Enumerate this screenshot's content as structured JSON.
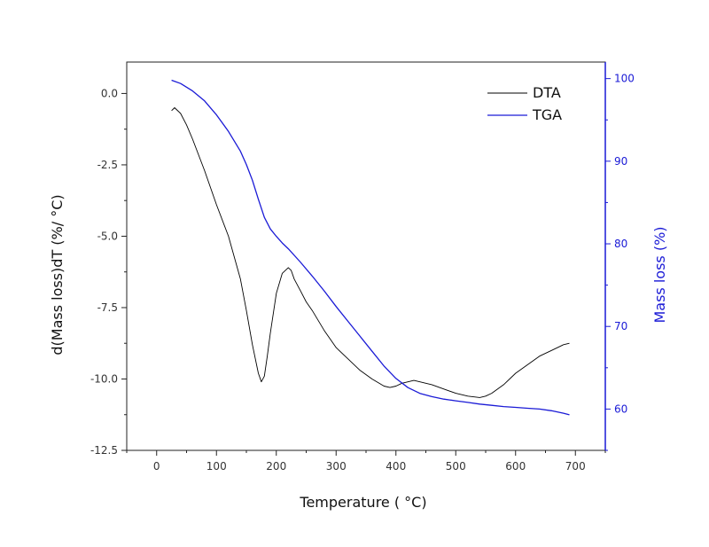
{
  "chart_data": {
    "type": "line",
    "xlabel": "Temperature (  °C)",
    "ylabel": "d(Mass loss)dT  (%/ °C)",
    "y2label": "Mass loss (%)",
    "xlim": [
      -50,
      750
    ],
    "ylim": [
      -12.5,
      1.1
    ],
    "y2lim": [
      55,
      102
    ],
    "xticks": [
      0,
      100,
      200,
      300,
      400,
      500,
      600,
      700
    ],
    "xtick_labels": [
      "0",
      "100",
      "200",
      "300",
      "400",
      "500",
      "600",
      "700"
    ],
    "yticks": [
      0.0,
      -2.5,
      -5.0,
      -7.5,
      -10.0,
      -12.5
    ],
    "ytick_labels": [
      "0.0",
      "-2.5",
      "-5.0",
      "-7.5",
      "-10.0",
      "-12.5"
    ],
    "y2ticks": [
      60,
      70,
      80,
      90,
      100
    ],
    "y2tick_labels": [
      "60",
      "70",
      "80",
      "90",
      "100"
    ],
    "legend_position": "top-right",
    "grid": false,
    "series": [
      {
        "name": "DTA",
        "axis": "left",
        "color": "#000000",
        "x": [
          25,
          30,
          40,
          50,
          60,
          80,
          100,
          120,
          140,
          150,
          160,
          170,
          175,
          180,
          185,
          190,
          200,
          210,
          220,
          225,
          230,
          240,
          250,
          260,
          280,
          300,
          320,
          340,
          360,
          380,
          390,
          400,
          410,
          420,
          430,
          440,
          450,
          460,
          480,
          500,
          520,
          540,
          550,
          560,
          580,
          600,
          620,
          640,
          660,
          680,
          690
        ],
        "y": [
          -0.6,
          -0.5,
          -0.7,
          -1.1,
          -1.6,
          -2.7,
          -3.9,
          -5.0,
          -6.5,
          -7.6,
          -8.8,
          -9.8,
          -10.1,
          -9.9,
          -9.2,
          -8.4,
          -7.0,
          -6.3,
          -6.1,
          -6.2,
          -6.5,
          -6.9,
          -7.3,
          -7.6,
          -8.3,
          -8.9,
          -9.3,
          -9.7,
          -10.0,
          -10.25,
          -10.3,
          -10.25,
          -10.15,
          -10.1,
          -10.05,
          -10.1,
          -10.15,
          -10.2,
          -10.35,
          -10.5,
          -10.6,
          -10.65,
          -10.6,
          -10.5,
          -10.2,
          -9.8,
          -9.5,
          -9.2,
          -9.0,
          -8.8,
          -8.75
        ]
      },
      {
        "name": "TGA",
        "axis": "right",
        "color": "#1a1ad6",
        "x": [
          25,
          40,
          60,
          80,
          100,
          120,
          140,
          150,
          160,
          170,
          180,
          190,
          200,
          210,
          220,
          240,
          260,
          280,
          300,
          320,
          340,
          360,
          380,
          400,
          420,
          440,
          460,
          480,
          500,
          520,
          540,
          560,
          580,
          600,
          620,
          640,
          660,
          680,
          690
        ],
        "y": [
          99.8,
          99.4,
          98.5,
          97.3,
          95.6,
          93.6,
          91.2,
          89.6,
          87.7,
          85.4,
          83.2,
          81.8,
          80.9,
          80.1,
          79.4,
          77.8,
          76.1,
          74.3,
          72.4,
          70.6,
          68.8,
          67.0,
          65.2,
          63.7,
          62.6,
          61.9,
          61.5,
          61.2,
          61.0,
          60.8,
          60.6,
          60.45,
          60.3,
          60.2,
          60.1,
          60.0,
          59.8,
          59.5,
          59.3
        ]
      }
    ]
  }
}
